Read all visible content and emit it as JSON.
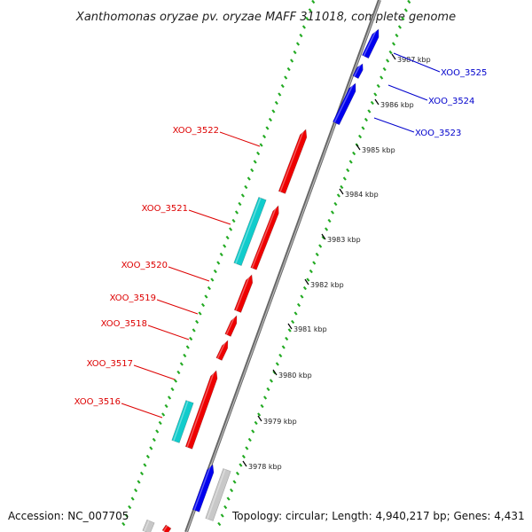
{
  "title": "Xanthomonas oryzae pv. oryzae MAFF 311018, complete genome",
  "accession": "Accession: NC_007705",
  "topology": "Topology: circular; Length: 4,940,217 bp; Genes: 4,431",
  "colors": {
    "reverse_gene": "#ee0000",
    "forward_gene": "#0000ee",
    "rna_like": "#11cccc",
    "other": "#c8c8c8",
    "backbone": "#888888",
    "ticks": "#22aa22",
    "label_red": "#dd0000",
    "label_blue": "#0000cc"
  },
  "kbp_labels": [
    {
      "label": "3987 kbp",
      "kbp": 3987
    },
    {
      "label": "3986 kbp",
      "kbp": 3986
    },
    {
      "label": "3985 kbp",
      "kbp": 3985
    },
    {
      "label": "3984 kbp",
      "kbp": 3984
    },
    {
      "label": "3983 kbp",
      "kbp": 3983
    },
    {
      "label": "3982 kbp",
      "kbp": 3982
    },
    {
      "label": "3981 kbp",
      "kbp": 3981
    },
    {
      "label": "3980 kbp",
      "kbp": 3980
    },
    {
      "label": "3979 kbp",
      "kbp": 3979
    },
    {
      "label": "3978 kbp",
      "kbp": 3978
    }
  ],
  "gene_labels": [
    {
      "name": "XOO_3525",
      "strand": "forward"
    },
    {
      "name": "XOO_3524",
      "strand": "forward"
    },
    {
      "name": "XOO_3523",
      "strand": "forward"
    },
    {
      "name": "XOO_3522",
      "strand": "reverse"
    },
    {
      "name": "XOO_3521",
      "strand": "reverse"
    },
    {
      "name": "XOO_3520",
      "strand": "reverse"
    },
    {
      "name": "XOO_3519",
      "strand": "reverse"
    },
    {
      "name": "XOO_3518",
      "strand": "reverse"
    },
    {
      "name": "XOO_3517",
      "strand": "reverse"
    },
    {
      "name": "XOO_3516",
      "strand": "reverse"
    }
  ]
}
